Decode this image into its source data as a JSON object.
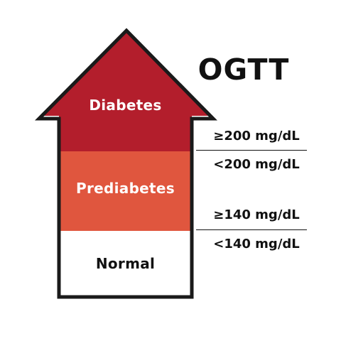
{
  "title": "OGTT",
  "zones": {
    "diabetes": {
      "label": "Diabetes",
      "color": "#b31e2c",
      "text_color": "#ffffff"
    },
    "prediabetes": {
      "label": "Prediabetes",
      "color": "#e0563e",
      "text_color": "#ffffff"
    },
    "normal": {
      "label": "Normal",
      "color": "#ffffff",
      "text_color": "#111111"
    }
  },
  "thresholds": {
    "diabetes_min": "≥200 mg/dL",
    "prediabetes_max": "<200 mg/dL",
    "prediabetes_min": "≥140 mg/dL",
    "normal_max": "<140 mg/dL"
  },
  "outline_color": "#1a1a1a"
}
